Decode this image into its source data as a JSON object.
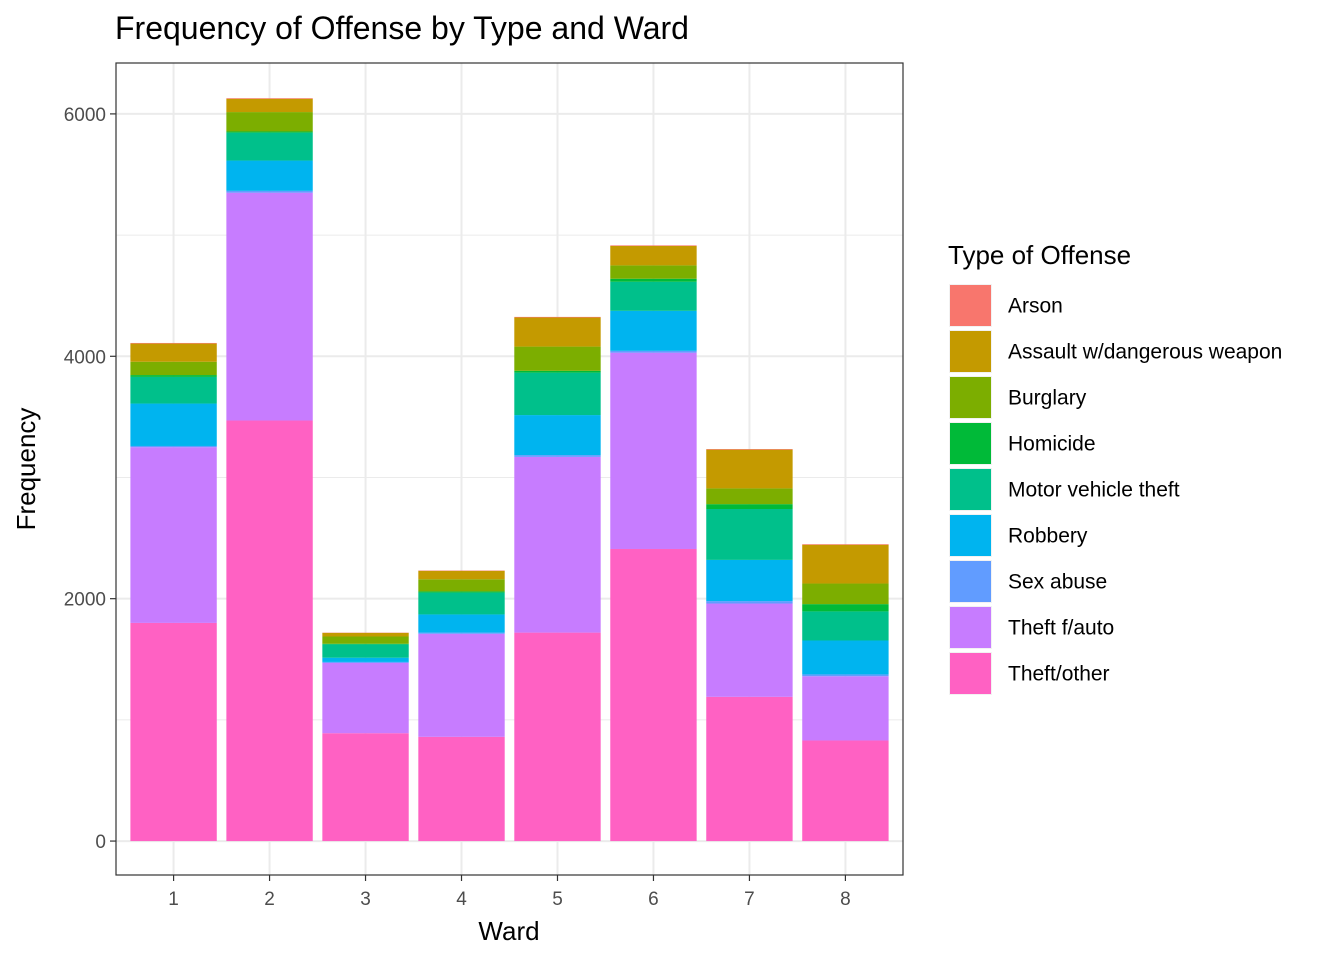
{
  "chart_data": {
    "type": "bar",
    "stacked": true,
    "title": "Frequency of Offense by Type and Ward",
    "xlabel": "Ward",
    "ylabel": "Frequency",
    "ylim": [
      -280,
      6420
    ],
    "yticks": [
      0,
      2000,
      4000,
      6000
    ],
    "grid": true,
    "legend_position": "right",
    "legend_title": "Type of Offense",
    "categories": [
      "1",
      "2",
      "3",
      "4",
      "5",
      "6",
      "7",
      "8"
    ],
    "series": [
      {
        "name": "Arson",
        "color": "#F8766D",
        "values": [
          5,
          5,
          2,
          3,
          5,
          5,
          5,
          5
        ]
      },
      {
        "name": "Assault w/dangerous weapon",
        "color": "#C49A00",
        "values": [
          150,
          110,
          30,
          70,
          240,
          160,
          320,
          320
        ]
      },
      {
        "name": "Burglary",
        "color": "#7CAE00",
        "values": [
          110,
          160,
          60,
          100,
          200,
          110,
          130,
          170
        ]
      },
      {
        "name": "Homicide",
        "color": "#00BA38",
        "values": [
          15,
          10,
          5,
          10,
          15,
          25,
          40,
          60
        ]
      },
      {
        "name": "Motor vehicle theft",
        "color": "#00C08B",
        "values": [
          220,
          230,
          110,
          180,
          350,
          240,
          420,
          240
        ]
      },
      {
        "name": "Robbery",
        "color": "#00B4EF",
        "values": [
          350,
          250,
          35,
          150,
          330,
          330,
          340,
          280
        ]
      },
      {
        "name": "Sex abuse",
        "color": "#619CFF",
        "values": [
          10,
          15,
          8,
          10,
          15,
          15,
          20,
          15
        ]
      },
      {
        "name": "Theft f/auto",
        "color": "#C77CFF",
        "values": [
          1450,
          1880,
          580,
          850,
          1450,
          1620,
          770,
          530
        ]
      },
      {
        "name": "Theft/other",
        "color": "#FF61C3",
        "values": [
          1800,
          3470,
          890,
          860,
          1720,
          2410,
          1190,
          830
        ]
      }
    ]
  }
}
